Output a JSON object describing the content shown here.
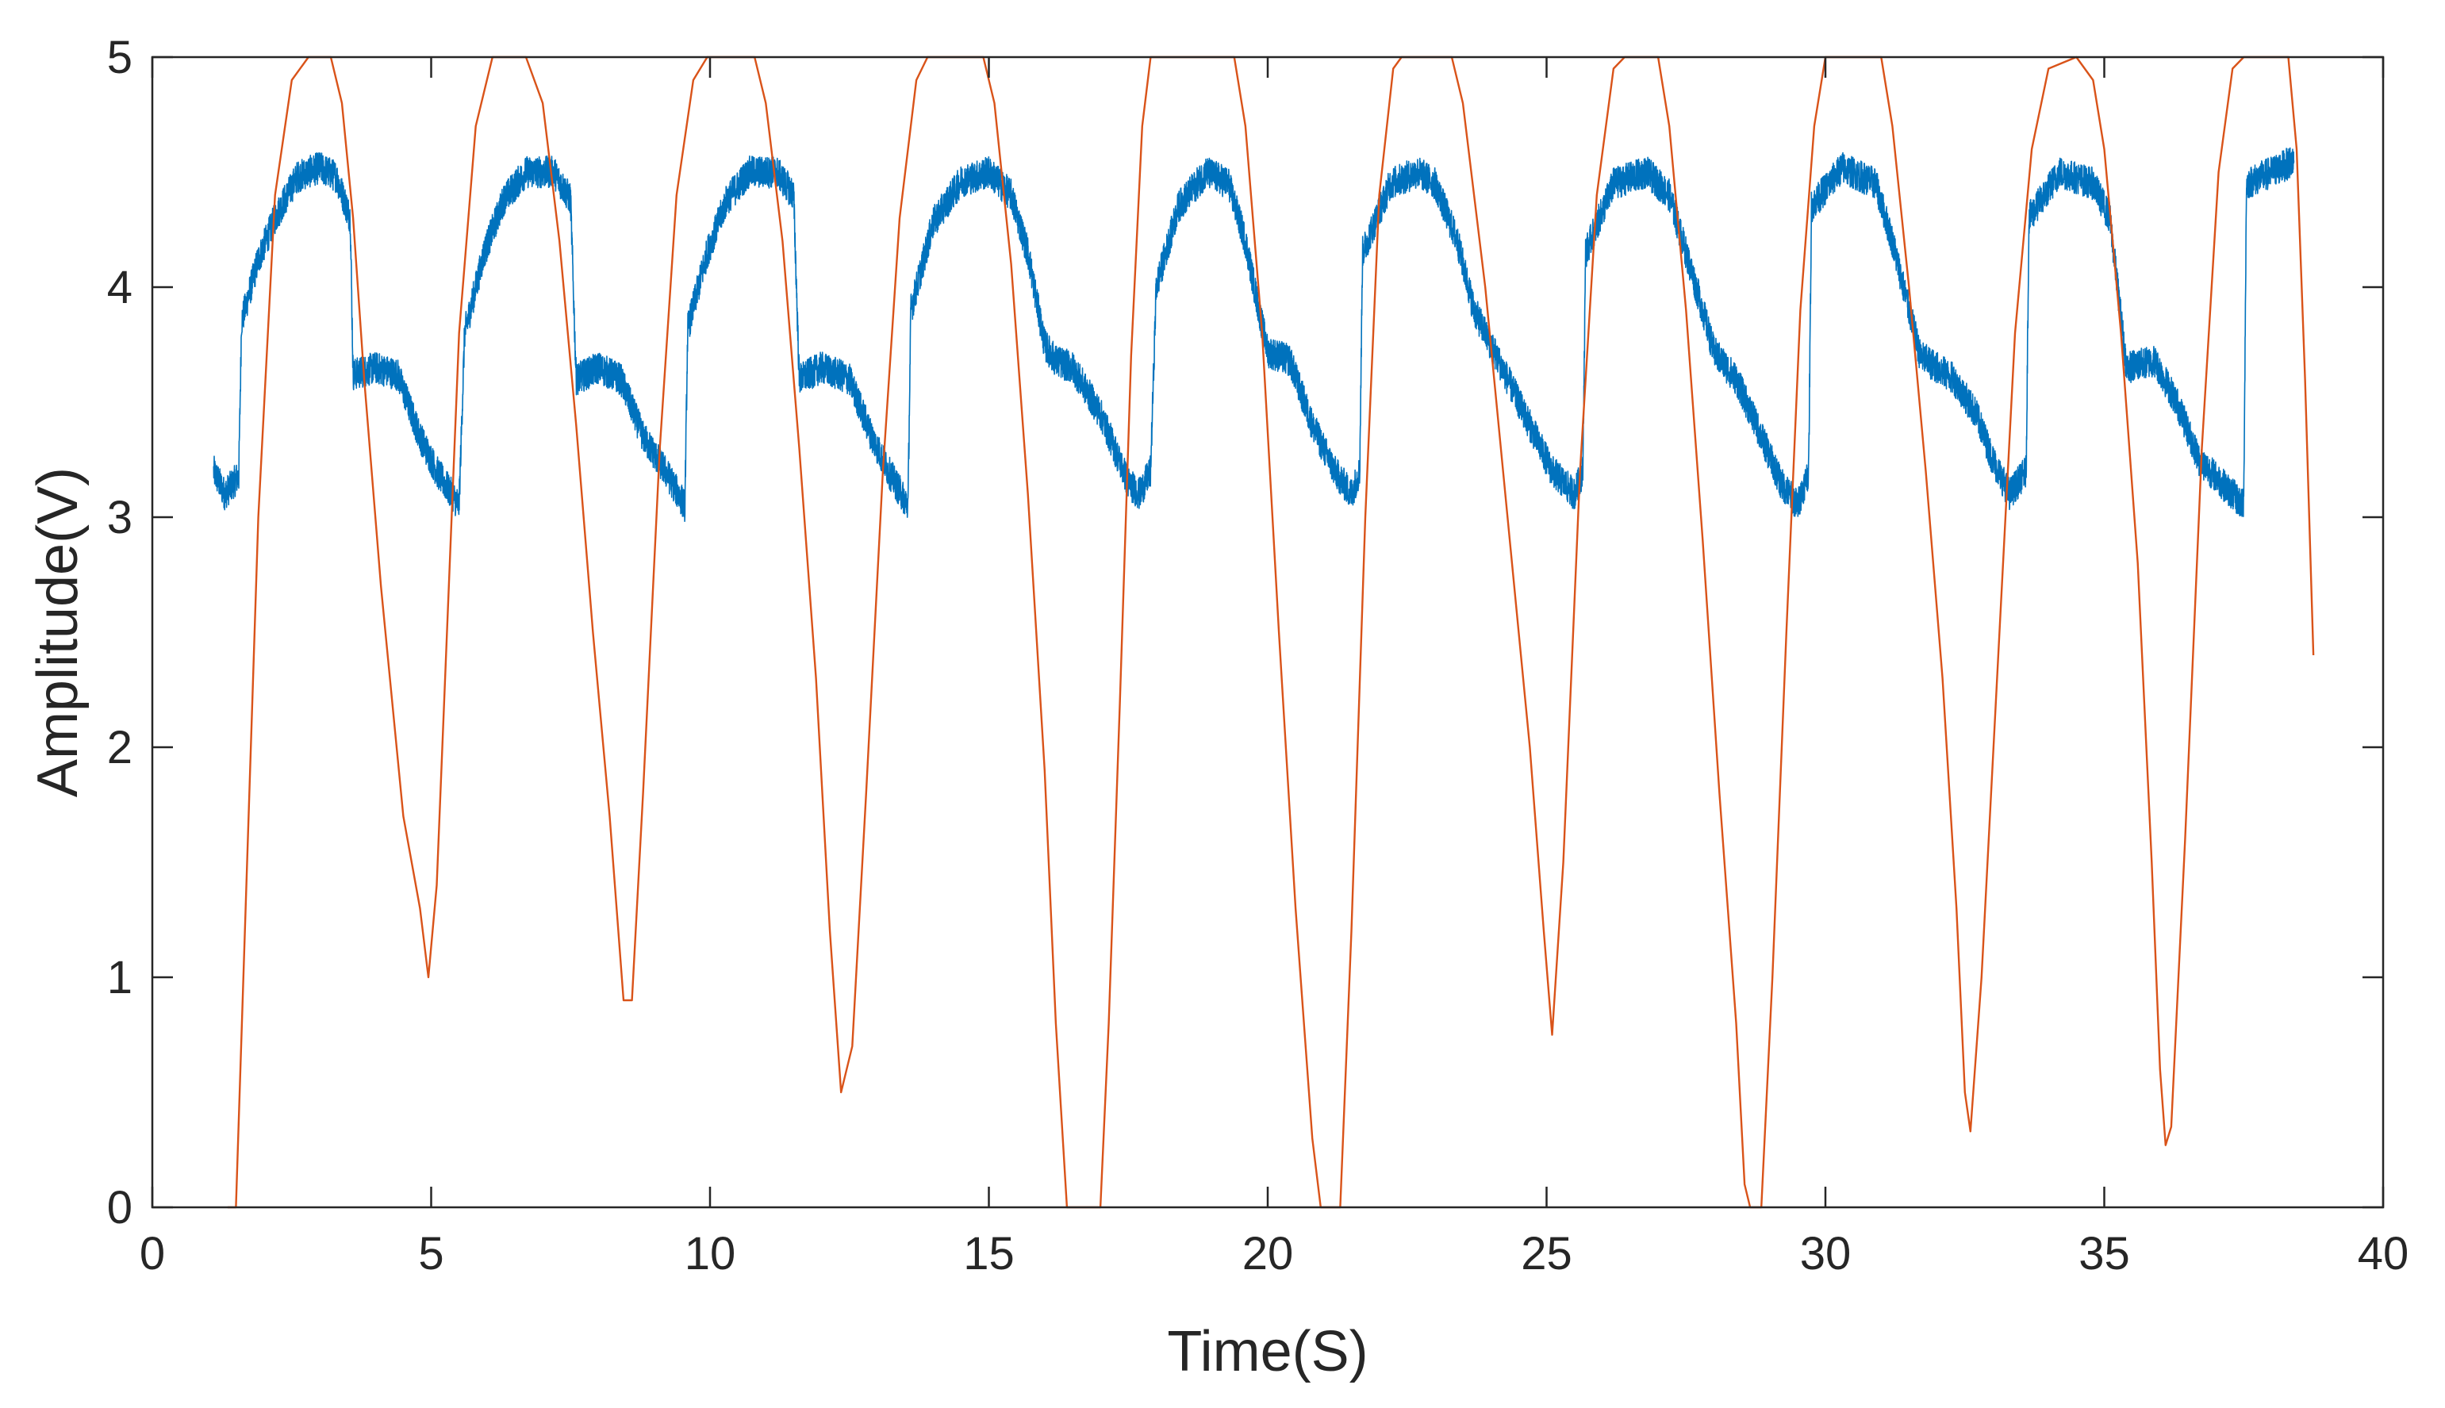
{
  "chart_data": {
    "type": "line",
    "title": "",
    "xlabel": "Time(S)",
    "ylabel": "Amplitude(V)",
    "xlim": [
      0,
      40
    ],
    "ylim": [
      0,
      5
    ],
    "xticks": [
      0,
      5,
      10,
      15,
      20,
      25,
      30,
      35,
      40
    ],
    "yticks": [
      0,
      1,
      2,
      3,
      4,
      5
    ],
    "grid": false,
    "legend": "none",
    "series": [
      {
        "name": "blue",
        "color": "#0072BD",
        "noise": 0.07,
        "points": [
          [
            1.1,
            3.2
          ],
          [
            1.3,
            3.1
          ],
          [
            1.55,
            3.18
          ],
          [
            1.6,
            3.85
          ],
          [
            1.9,
            4.12
          ],
          [
            2.2,
            4.3
          ],
          [
            2.6,
            4.48
          ],
          [
            3.0,
            4.52
          ],
          [
            3.3,
            4.48
          ],
          [
            3.55,
            4.3
          ],
          [
            3.6,
            3.62
          ],
          [
            4.0,
            3.65
          ],
          [
            4.4,
            3.62
          ],
          [
            4.8,
            3.35
          ],
          [
            5.1,
            3.2
          ],
          [
            5.5,
            3.05
          ],
          [
            5.6,
            3.8
          ],
          [
            5.95,
            4.15
          ],
          [
            6.3,
            4.38
          ],
          [
            6.7,
            4.5
          ],
          [
            7.2,
            4.5
          ],
          [
            7.5,
            4.38
          ],
          [
            7.6,
            3.6
          ],
          [
            8.0,
            3.65
          ],
          [
            8.4,
            3.6
          ],
          [
            8.8,
            3.35
          ],
          [
            9.2,
            3.2
          ],
          [
            9.55,
            3.05
          ],
          [
            9.6,
            3.82
          ],
          [
            9.95,
            4.15
          ],
          [
            10.3,
            4.38
          ],
          [
            10.7,
            4.5
          ],
          [
            11.2,
            4.5
          ],
          [
            11.5,
            4.4
          ],
          [
            11.6,
            3.6
          ],
          [
            12.0,
            3.65
          ],
          [
            12.5,
            3.6
          ],
          [
            12.9,
            3.35
          ],
          [
            13.2,
            3.2
          ],
          [
            13.55,
            3.05
          ],
          [
            13.6,
            3.9
          ],
          [
            14.0,
            4.28
          ],
          [
            14.5,
            4.46
          ],
          [
            15.0,
            4.5
          ],
          [
            15.4,
            4.4
          ],
          [
            15.7,
            4.15
          ],
          [
            16.0,
            3.75
          ],
          [
            16.2,
            3.68
          ],
          [
            16.5,
            3.65
          ],
          [
            17.0,
            3.45
          ],
          [
            17.5,
            3.15
          ],
          [
            17.7,
            3.1
          ],
          [
            17.9,
            3.2
          ],
          [
            18.0,
            4.0
          ],
          [
            18.4,
            4.35
          ],
          [
            18.9,
            4.5
          ],
          [
            19.3,
            4.45
          ],
          [
            19.6,
            4.2
          ],
          [
            19.8,
            3.95
          ],
          [
            20.0,
            3.72
          ],
          [
            20.4,
            3.68
          ],
          [
            20.8,
            3.4
          ],
          [
            21.2,
            3.2
          ],
          [
            21.5,
            3.1
          ],
          [
            21.65,
            3.2
          ],
          [
            21.7,
            4.15
          ],
          [
            22.2,
            4.45
          ],
          [
            22.7,
            4.5
          ],
          [
            23.0,
            4.45
          ],
          [
            23.4,
            4.2
          ],
          [
            23.7,
            3.9
          ],
          [
            24.0,
            3.75
          ],
          [
            24.3,
            3.6
          ],
          [
            24.7,
            3.4
          ],
          [
            25.1,
            3.2
          ],
          [
            25.5,
            3.1
          ],
          [
            25.65,
            3.2
          ],
          [
            25.7,
            4.15
          ],
          [
            26.2,
            4.45
          ],
          [
            26.8,
            4.5
          ],
          [
            27.2,
            4.4
          ],
          [
            27.5,
            4.15
          ],
          [
            27.8,
            3.9
          ],
          [
            28.0,
            3.72
          ],
          [
            28.4,
            3.6
          ],
          [
            28.8,
            3.38
          ],
          [
            29.2,
            3.15
          ],
          [
            29.5,
            3.05
          ],
          [
            29.7,
            3.2
          ],
          [
            29.75,
            4.35
          ],
          [
            30.3,
            4.52
          ],
          [
            30.9,
            4.45
          ],
          [
            31.2,
            4.2
          ],
          [
            31.5,
            3.9
          ],
          [
            31.7,
            3.7
          ],
          [
            32.3,
            3.6
          ],
          [
            32.7,
            3.45
          ],
          [
            33.0,
            3.25
          ],
          [
            33.3,
            3.1
          ],
          [
            33.6,
            3.2
          ],
          [
            33.65,
            4.3
          ],
          [
            34.2,
            4.5
          ],
          [
            34.8,
            4.45
          ],
          [
            35.1,
            4.3
          ],
          [
            35.4,
            3.65
          ],
          [
            35.9,
            3.68
          ],
          [
            36.3,
            3.5
          ],
          [
            36.7,
            3.25
          ],
          [
            37.1,
            3.15
          ],
          [
            37.5,
            3.05
          ],
          [
            37.55,
            4.45
          ],
          [
            38.0,
            4.5
          ],
          [
            38.4,
            4.55
          ]
        ]
      },
      {
        "name": "orange",
        "color": "#D95319",
        "noise": 0,
        "points": [
          [
            1.35,
            0.0
          ],
          [
            1.5,
            0.0
          ],
          [
            1.7,
            1.5
          ],
          [
            1.9,
            3.0
          ],
          [
            2.2,
            4.4
          ],
          [
            2.5,
            4.9
          ],
          [
            2.8,
            5.0
          ],
          [
            3.2,
            5.0
          ],
          [
            3.4,
            4.8
          ],
          [
            3.6,
            4.3
          ],
          [
            3.8,
            3.6
          ],
          [
            4.1,
            2.7
          ],
          [
            4.5,
            1.7
          ],
          [
            4.8,
            1.3
          ],
          [
            4.95,
            1.0
          ],
          [
            5.1,
            1.4
          ],
          [
            5.3,
            2.6
          ],
          [
            5.5,
            3.8
          ],
          [
            5.8,
            4.7
          ],
          [
            6.1,
            5.0
          ],
          [
            6.7,
            5.0
          ],
          [
            7.0,
            4.8
          ],
          [
            7.3,
            4.2
          ],
          [
            7.6,
            3.4
          ],
          [
            7.9,
            2.5
          ],
          [
            8.2,
            1.7
          ],
          [
            8.45,
            0.9
          ],
          [
            8.6,
            0.9
          ],
          [
            8.8,
            1.8
          ],
          [
            9.1,
            3.3
          ],
          [
            9.4,
            4.4
          ],
          [
            9.7,
            4.9
          ],
          [
            9.95,
            5.0
          ],
          [
            10.8,
            5.0
          ],
          [
            11.0,
            4.8
          ],
          [
            11.3,
            4.2
          ],
          [
            11.6,
            3.3
          ],
          [
            11.9,
            2.3
          ],
          [
            12.15,
            1.2
          ],
          [
            12.35,
            0.5
          ],
          [
            12.55,
            0.7
          ],
          [
            12.8,
            1.8
          ],
          [
            13.1,
            3.2
          ],
          [
            13.4,
            4.3
          ],
          [
            13.7,
            4.9
          ],
          [
            13.9,
            5.0
          ],
          [
            14.9,
            5.0
          ],
          [
            15.1,
            4.8
          ],
          [
            15.4,
            4.1
          ],
          [
            15.7,
            3.1
          ],
          [
            16.0,
            1.9
          ],
          [
            16.2,
            0.8
          ],
          [
            16.4,
            0.0
          ],
          [
            17.0,
            0.0
          ],
          [
            17.15,
            0.8
          ],
          [
            17.35,
            2.2
          ],
          [
            17.55,
            3.7
          ],
          [
            17.75,
            4.7
          ],
          [
            17.9,
            5.0
          ],
          [
            19.4,
            5.0
          ],
          [
            19.6,
            4.7
          ],
          [
            19.9,
            3.8
          ],
          [
            20.2,
            2.5
          ],
          [
            20.5,
            1.3
          ],
          [
            20.8,
            0.3
          ],
          [
            20.95,
            0.0
          ],
          [
            21.3,
            0.0
          ],
          [
            21.5,
            1.2
          ],
          [
            21.75,
            3.0
          ],
          [
            22.0,
            4.4
          ],
          [
            22.25,
            4.95
          ],
          [
            22.4,
            5.0
          ],
          [
            23.3,
            5.0
          ],
          [
            23.5,
            4.8
          ],
          [
            23.9,
            4.0
          ],
          [
            24.3,
            3.0
          ],
          [
            24.7,
            2.0
          ],
          [
            24.95,
            1.2
          ],
          [
            25.1,
            0.75
          ],
          [
            25.3,
            1.5
          ],
          [
            25.6,
            3.2
          ],
          [
            25.9,
            4.4
          ],
          [
            26.2,
            4.95
          ],
          [
            26.4,
            5.0
          ],
          [
            27.0,
            5.0
          ],
          [
            27.2,
            4.7
          ],
          [
            27.5,
            3.9
          ],
          [
            27.8,
            2.9
          ],
          [
            28.1,
            1.8
          ],
          [
            28.4,
            0.8
          ],
          [
            28.55,
            0.1
          ],
          [
            28.65,
            0.0
          ],
          [
            28.85,
            0.0
          ],
          [
            29.05,
            1.0
          ],
          [
            29.3,
            2.5
          ],
          [
            29.55,
            3.9
          ],
          [
            29.8,
            4.7
          ],
          [
            30.0,
            5.0
          ],
          [
            31.0,
            5.0
          ],
          [
            31.2,
            4.7
          ],
          [
            31.5,
            4.0
          ],
          [
            31.8,
            3.2
          ],
          [
            32.1,
            2.3
          ],
          [
            32.35,
            1.3
          ],
          [
            32.5,
            0.5
          ],
          [
            32.6,
            0.33
          ],
          [
            32.8,
            1.0
          ],
          [
            33.1,
            2.4
          ],
          [
            33.4,
            3.8
          ],
          [
            33.7,
            4.6
          ],
          [
            34.0,
            4.95
          ],
          [
            34.5,
            5.0
          ],
          [
            34.8,
            4.9
          ],
          [
            35.0,
            4.6
          ],
          [
            35.3,
            3.8
          ],
          [
            35.6,
            2.8
          ],
          [
            35.85,
            1.5
          ],
          [
            36.0,
            0.6
          ],
          [
            36.1,
            0.27
          ],
          [
            36.2,
            0.35
          ],
          [
            36.45,
            1.6
          ],
          [
            36.75,
            3.3
          ],
          [
            37.05,
            4.5
          ],
          [
            37.3,
            4.95
          ],
          [
            37.5,
            5.0
          ],
          [
            38.3,
            5.0
          ],
          [
            38.45,
            4.6
          ],
          [
            38.6,
            3.6
          ],
          [
            38.75,
            2.4
          ]
        ]
      }
    ]
  }
}
